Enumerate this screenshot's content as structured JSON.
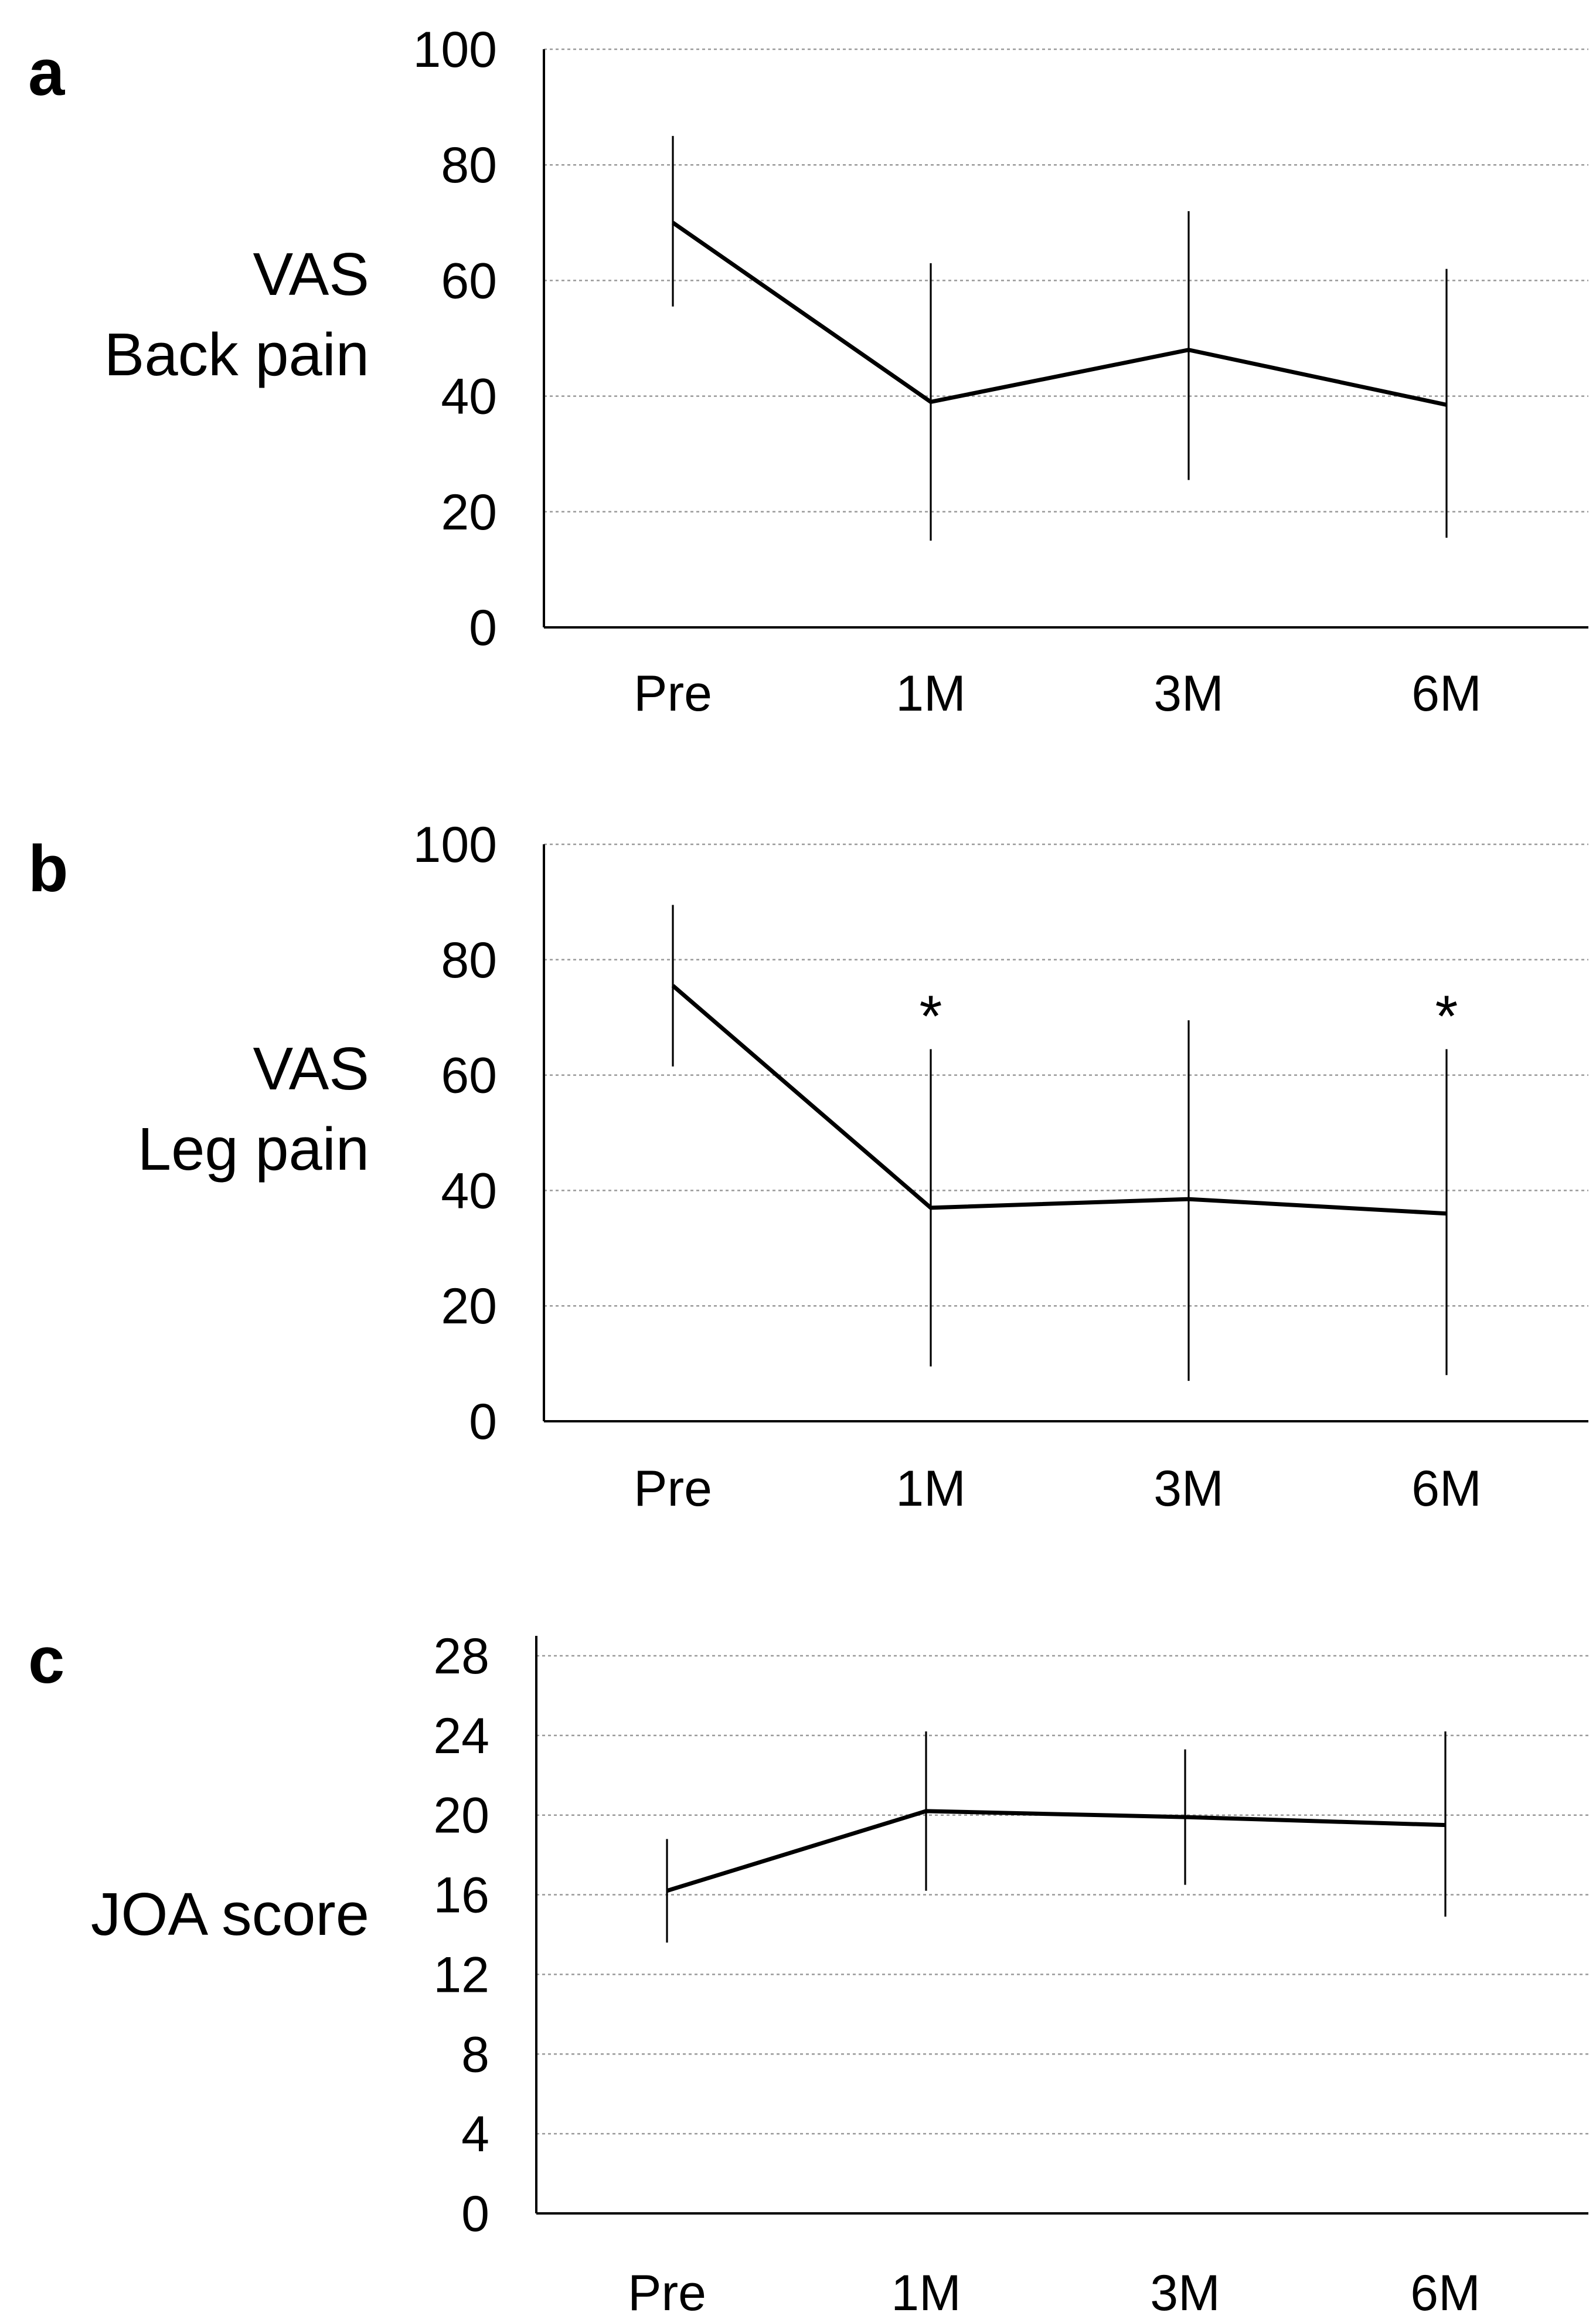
{
  "chart_data": [
    {
      "type": "line",
      "panel_label": "a",
      "ylabel": [
        "VAS",
        "Back pain"
      ],
      "categories": [
        "Pre",
        "1M",
        "3M",
        "6M"
      ],
      "values": [
        70,
        39,
        48,
        38.5
      ],
      "error_low": [
        55.5,
        15,
        25.5,
        15.5
      ],
      "error_high": [
        85,
        63,
        72,
        62
      ],
      "significant": [
        false,
        false,
        false,
        false
      ],
      "yticks": [
        0,
        20,
        40,
        60,
        80,
        100
      ],
      "ylim": [
        0,
        100
      ],
      "grid": true
    },
    {
      "type": "line",
      "panel_label": "b",
      "ylabel": [
        "VAS",
        "Leg pain"
      ],
      "categories": [
        "Pre",
        "1M",
        "3M",
        "6M"
      ],
      "values": [
        75.5,
        37,
        38.5,
        36
      ],
      "error_low": [
        61.5,
        9.5,
        7,
        8
      ],
      "error_high": [
        89.5,
        64.5,
        69.5,
        64.5
      ],
      "significant": [
        false,
        true,
        false,
        true
      ],
      "marker_symbol": "*",
      "yticks": [
        0,
        20,
        40,
        60,
        80,
        100
      ],
      "ylim": [
        0,
        100
      ],
      "grid": true
    },
    {
      "type": "line",
      "panel_label": "c",
      "ylabel": [
        "JOA score"
      ],
      "categories": [
        "Pre",
        "1M",
        "3M",
        "6M"
      ],
      "values": [
        16.2,
        20.2,
        19.9,
        19.5
      ],
      "error_low": [
        13.6,
        16.2,
        16.5,
        14.9
      ],
      "error_high": [
        18.8,
        24.2,
        23.3,
        24.2
      ],
      "significant": [
        false,
        false,
        false,
        false
      ],
      "yticks": [
        0,
        4,
        8,
        12,
        16,
        20,
        24,
        28
      ],
      "ylim": [
        0,
        29
      ],
      "grid": true
    }
  ]
}
